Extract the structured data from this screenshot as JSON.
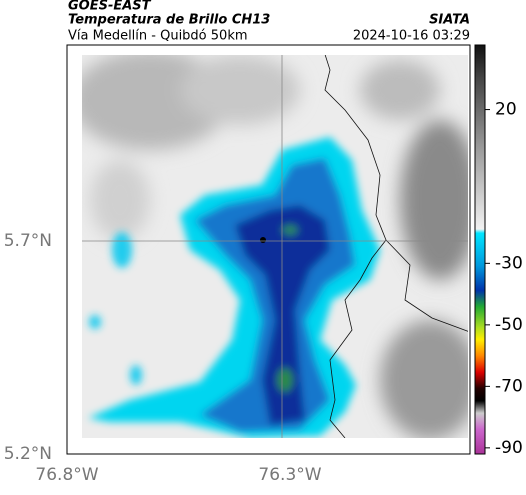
{
  "header": {
    "product": "GOES-EAST",
    "title": "Temperatura de Brillo CH13",
    "subtitle": "Vía Medellín - Quibdó 50km",
    "source": "SIATA",
    "timestamp": "2024-10-16 03:29"
  },
  "map": {
    "lat_ticks": [
      "5.7°N",
      "5.2°N"
    ],
    "lon_ticks": [
      "76.8°W",
      "76.3°W"
    ]
  },
  "colorbar": {
    "lim": [
      -92,
      41
    ],
    "ticks": [
      20,
      -30,
      -50,
      -70,
      -90
    ]
  }
}
